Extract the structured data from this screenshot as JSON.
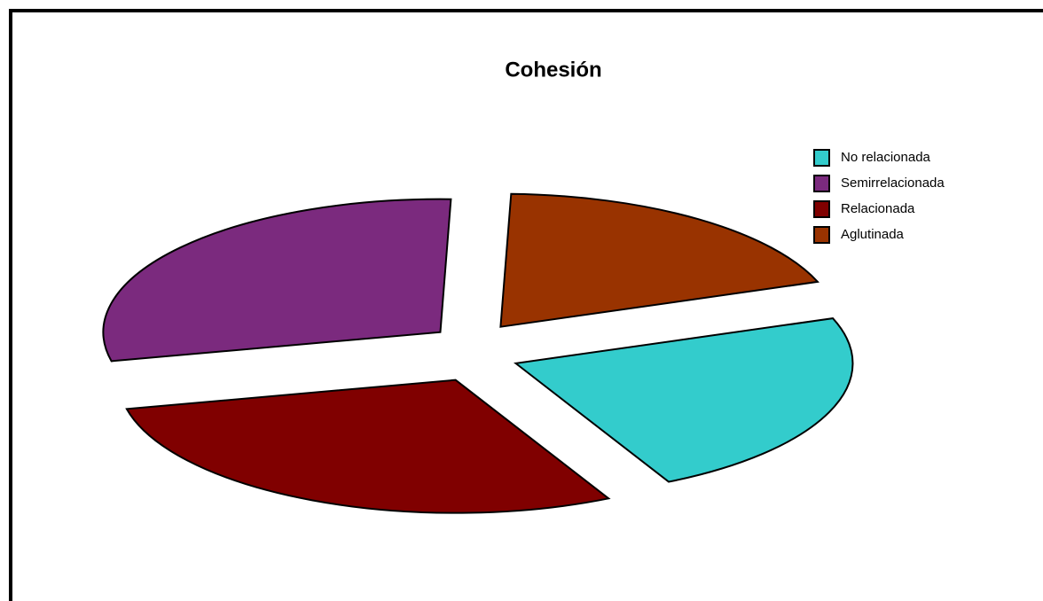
{
  "chart_data": {
    "type": "pie",
    "title": "Cohesión",
    "categories": [
      "No relacionada",
      "Semirrelacionada",
      "Relacionada",
      "Aglutinada"
    ],
    "values": [
      23,
      29,
      29,
      19
    ],
    "colors": [
      "#33cccc",
      "#7b2a7e",
      "#800000",
      "#993300"
    ],
    "legend": "right"
  }
}
